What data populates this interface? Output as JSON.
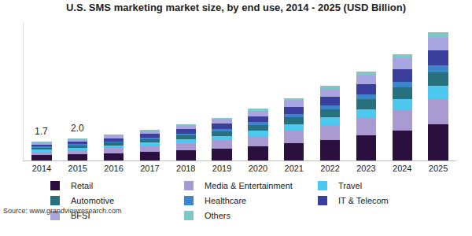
{
  "chart_data": {
    "type": "bar",
    "title": "U.S. SMS marketing market size, by end use, 2014 - 2025 (USD Billion)",
    "source": "Source: www.grandviewresearch.com",
    "categories": [
      "2014",
      "2015",
      "2016",
      "2017",
      "2018",
      "2019",
      "2020",
      "2021",
      "2022",
      "2023",
      "2024",
      "2025"
    ],
    "series": [
      {
        "name": "Retail",
        "color": "#2b0f3f",
        "values": [
          0.48,
          0.56,
          0.66,
          0.78,
          0.92,
          1.09,
          1.32,
          1.6,
          1.9,
          2.27,
          2.72,
          3.28
        ]
      },
      {
        "name": "Media & Entertainment",
        "color": "#a99ad1",
        "values": [
          0.34,
          0.4,
          0.47,
          0.56,
          0.66,
          0.78,
          0.94,
          1.14,
          1.36,
          1.62,
          1.94,
          2.34
        ]
      },
      {
        "name": "Travel",
        "color": "#4dc9f0",
        "values": [
          0.17,
          0.2,
          0.24,
          0.28,
          0.33,
          0.39,
          0.47,
          0.57,
          0.68,
          0.81,
          0.97,
          1.17
        ]
      },
      {
        "name": "Automotive",
        "color": "#27707e",
        "values": [
          0.19,
          0.22,
          0.26,
          0.31,
          0.36,
          0.43,
          0.52,
          0.63,
          0.75,
          0.89,
          1.07,
          1.29
        ]
      },
      {
        "name": "Healthcare",
        "color": "#3a86c8",
        "values": [
          0.09,
          0.1,
          0.12,
          0.14,
          0.17,
          0.2,
          0.24,
          0.29,
          0.34,
          0.41,
          0.49,
          0.59
        ]
      },
      {
        "name": "IT & Telecom",
        "color": "#3a3f9e",
        "values": [
          0.2,
          0.24,
          0.28,
          0.34,
          0.4,
          0.47,
          0.56,
          0.68,
          0.82,
          0.97,
          1.16,
          1.4
        ]
      },
      {
        "name": "BFSI",
        "color": "#a8a5e0",
        "values": [
          0.17,
          0.2,
          0.24,
          0.28,
          0.33,
          0.39,
          0.47,
          0.57,
          0.68,
          0.81,
          0.97,
          1.17
        ]
      },
      {
        "name": "Others",
        "color": "#7fc6c9",
        "values": [
          0.07,
          0.08,
          0.09,
          0.11,
          0.13,
          0.16,
          0.19,
          0.23,
          0.27,
          0.32,
          0.39,
          0.47
        ]
      }
    ],
    "annotations": [
      {
        "category": "2014",
        "value": 1.7,
        "text": "1.7"
      },
      {
        "category": "2015",
        "value": 2.0,
        "text": "2.0"
      }
    ],
    "stacked": true,
    "ylim": [
      0,
      12.5
    ],
    "tick_labels": "x",
    "grid": false,
    "legend": "bottom"
  }
}
